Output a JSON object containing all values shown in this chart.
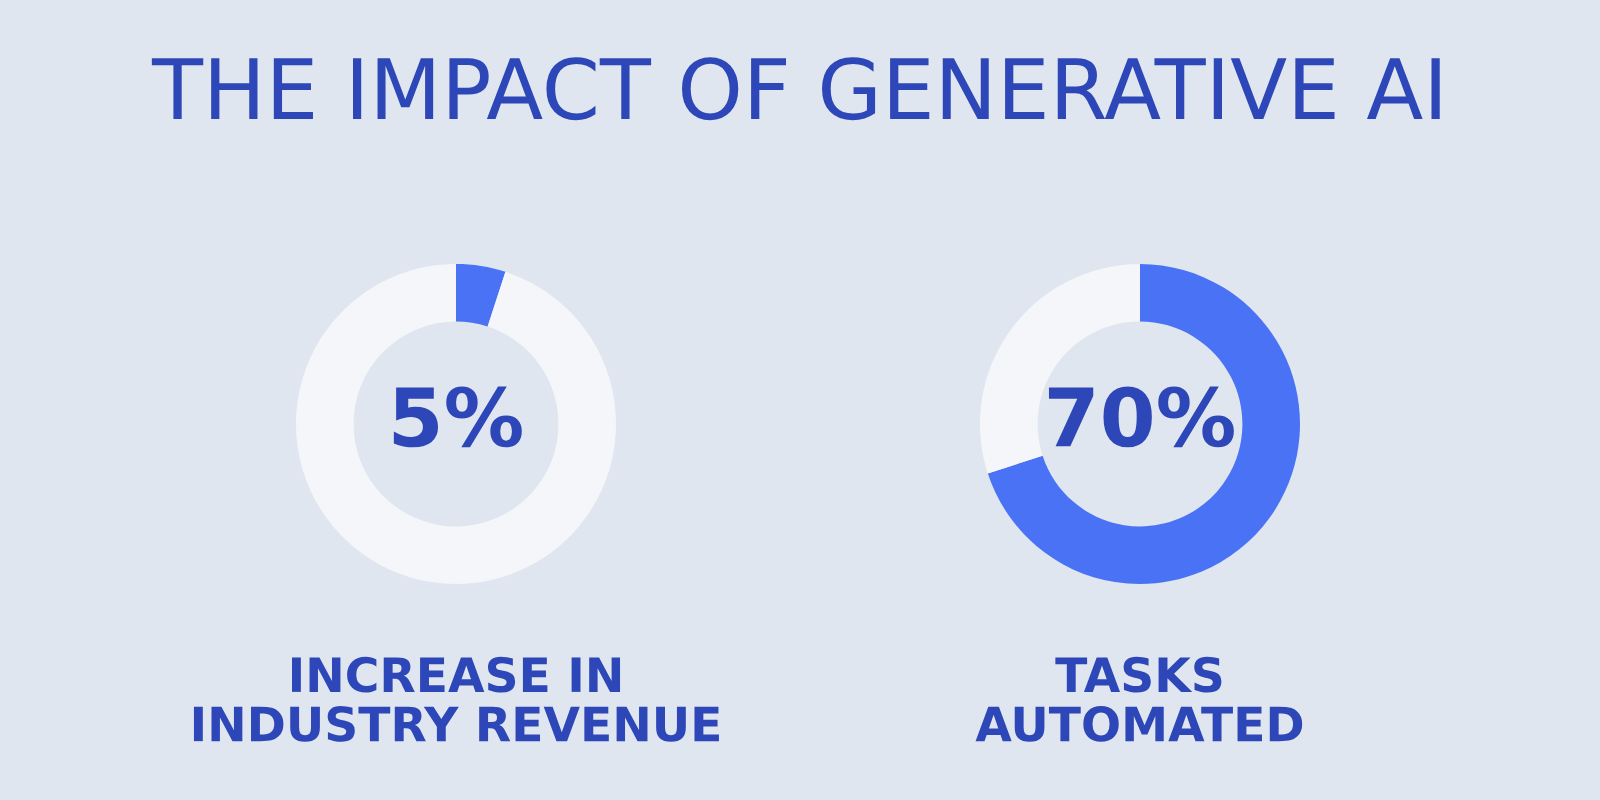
{
  "chart_data": [
    {
      "type": "donut",
      "title": "THE IMPACT OF GENERATIVE AI",
      "xlabel": "INCREASE IN\nINDUSTRY REVENUE",
      "categories": [
        null,
        null
      ],
      "values": [
        5,
        95
      ],
      "colors": [
        "#4a72f5",
        "#f4f6fa"
      ],
      "value_labels": [
        "5%",
        null
      ]
    },
    {
      "type": "donut",
      "xlabel": "TASKS\nAUTOMATED",
      "categories": [
        null,
        null
      ],
      "values": [
        70,
        30
      ],
      "colors": [
        "#4a72f5",
        "#f4f6fa"
      ],
      "value_labels": [
        "70%",
        null
      ]
    }
  ]
}
